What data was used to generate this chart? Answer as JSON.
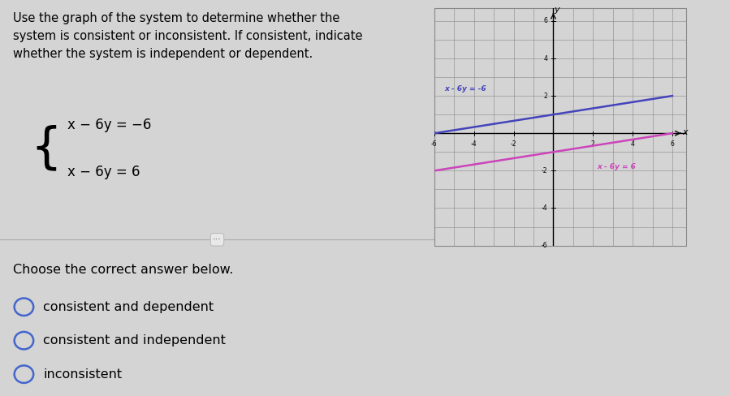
{
  "title_text": "Use the graph of the system to determine whether the\nsystem is consistent or inconsistent. If consistent, indicate\nwhether the system is independent or dependent.",
  "eq1_text": "x − 6y = −6",
  "eq2_text": "x − 6y = 6",
  "line1_color": "#4444bb",
  "line2_color": "#cc44bb",
  "xlim": [
    -6,
    6
  ],
  "ylim": [
    -6,
    6
  ],
  "grid_color": "#888888",
  "panel_bg": "#d4d4d4",
  "graph_bg": "#ffffff",
  "divider_color": "#aaaaaa",
  "choices": [
    "consistent and dependent",
    "consistent and independent",
    "inconsistent"
  ],
  "choose_text": "Choose the correct answer below.",
  "radio_color": "#4466cc",
  "font_size_title": 10.5,
  "font_size_choices": 11.5,
  "font_size_eqs": 12,
  "font_size_graph_labels": 7,
  "eq1_label": "x - 6y = -6",
  "eq2_label": "x - 6y = 6"
}
